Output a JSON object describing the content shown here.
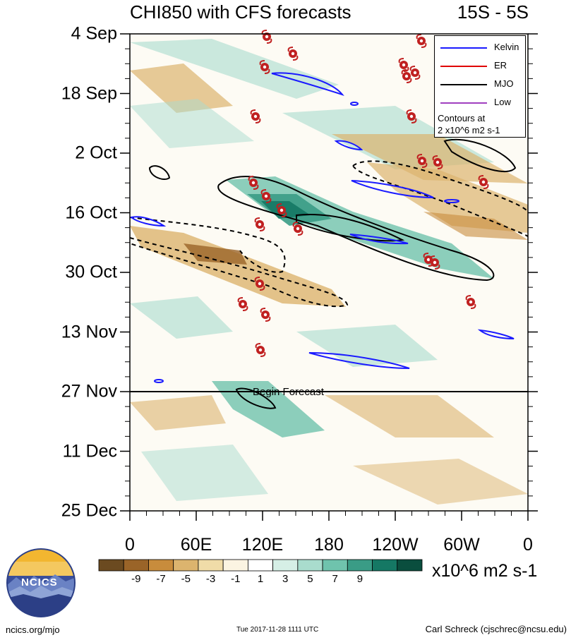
{
  "header": {
    "title": "CHI850 with CFS forecasts",
    "region": "15S - 5S"
  },
  "legend": {
    "items": [
      {
        "label": "Kelvin",
        "color": "#1a1aff"
      },
      {
        "label": "ER",
        "color": "#e00000"
      },
      {
        "label": "MJO",
        "color": "#000000"
      },
      {
        "label": "Low",
        "color": "#a040c0"
      }
    ],
    "note_line1": "Contours at",
    "note_line2": "2 x10^6 m2 s-1"
  },
  "forecast_label": "Begin Forecast",
  "colorbar": {
    "tick_labels": [
      "-9",
      "-7",
      "-5",
      "-3",
      "-1",
      "1",
      "3",
      "5",
      "7",
      "9"
    ],
    "colors": [
      "#6b4a20",
      "#9a6428",
      "#c88c3c",
      "#dcb46e",
      "#f0dca8",
      "#fbf4e2",
      "#ffffff",
      "#d6efe6",
      "#a9dccd",
      "#6fc3ad",
      "#3a9c86",
      "#157864",
      "#0a4e3e"
    ],
    "units": "x10^6 m2 s-1"
  },
  "footer": {
    "left": "ncics.org/mjo",
    "middle": "Tue 2017-11-28 1111 UTC",
    "right": "Carl Schreck (cjschrec@ncsu.edu)"
  },
  "logo": {
    "text": "NCICS"
  },
  "chart_data": {
    "type": "heatmap",
    "title": "CHI850 with CFS forecasts",
    "subtitle": "15S - 5S",
    "x_tick_labels": [
      "0",
      "60E",
      "120E",
      "180",
      "120W",
      "60W",
      "0"
    ],
    "x_range_deg": [
      0,
      360
    ],
    "y_tick_labels": [
      "4 Sep",
      "18 Sep",
      "2 Oct",
      "16 Oct",
      "30 Oct",
      "13 Nov",
      "27 Nov",
      "11 Dec",
      "25 Dec"
    ],
    "forecast_start": "27 Nov",
    "mjo_contours": [
      {
        "style": "solid",
        "approx_path": [
          [
            "9 Oct",
            "40E"
          ],
          [
            "9 Oct",
            "80E"
          ],
          [
            "20 Oct",
            "170E"
          ],
          [
            "28 Oct",
            "150W"
          ],
          [
            "31 Oct",
            "100W"
          ],
          [
            "28 Oct",
            "130W"
          ],
          [
            "18 Oct",
            "170E"
          ]
        ]
      },
      {
        "style": "dashed",
        "approx_path": [
          [
            "19 Oct",
            "0"
          ],
          [
            "26 Oct",
            "80E"
          ],
          [
            "4 Nov",
            "140E"
          ],
          [
            "8 Nov",
            "170E"
          ],
          [
            "2 Nov",
            "140E"
          ],
          [
            "22 Oct",
            "80E"
          ]
        ]
      },
      {
        "style": "dashed",
        "approx_path": [
          [
            "4 Oct",
            "160W"
          ],
          [
            "10 Oct",
            "100W"
          ],
          [
            "16 Oct",
            "10W"
          ],
          [
            "21 Oct",
            "0"
          ]
        ]
      }
    ],
    "grid": false
  }
}
